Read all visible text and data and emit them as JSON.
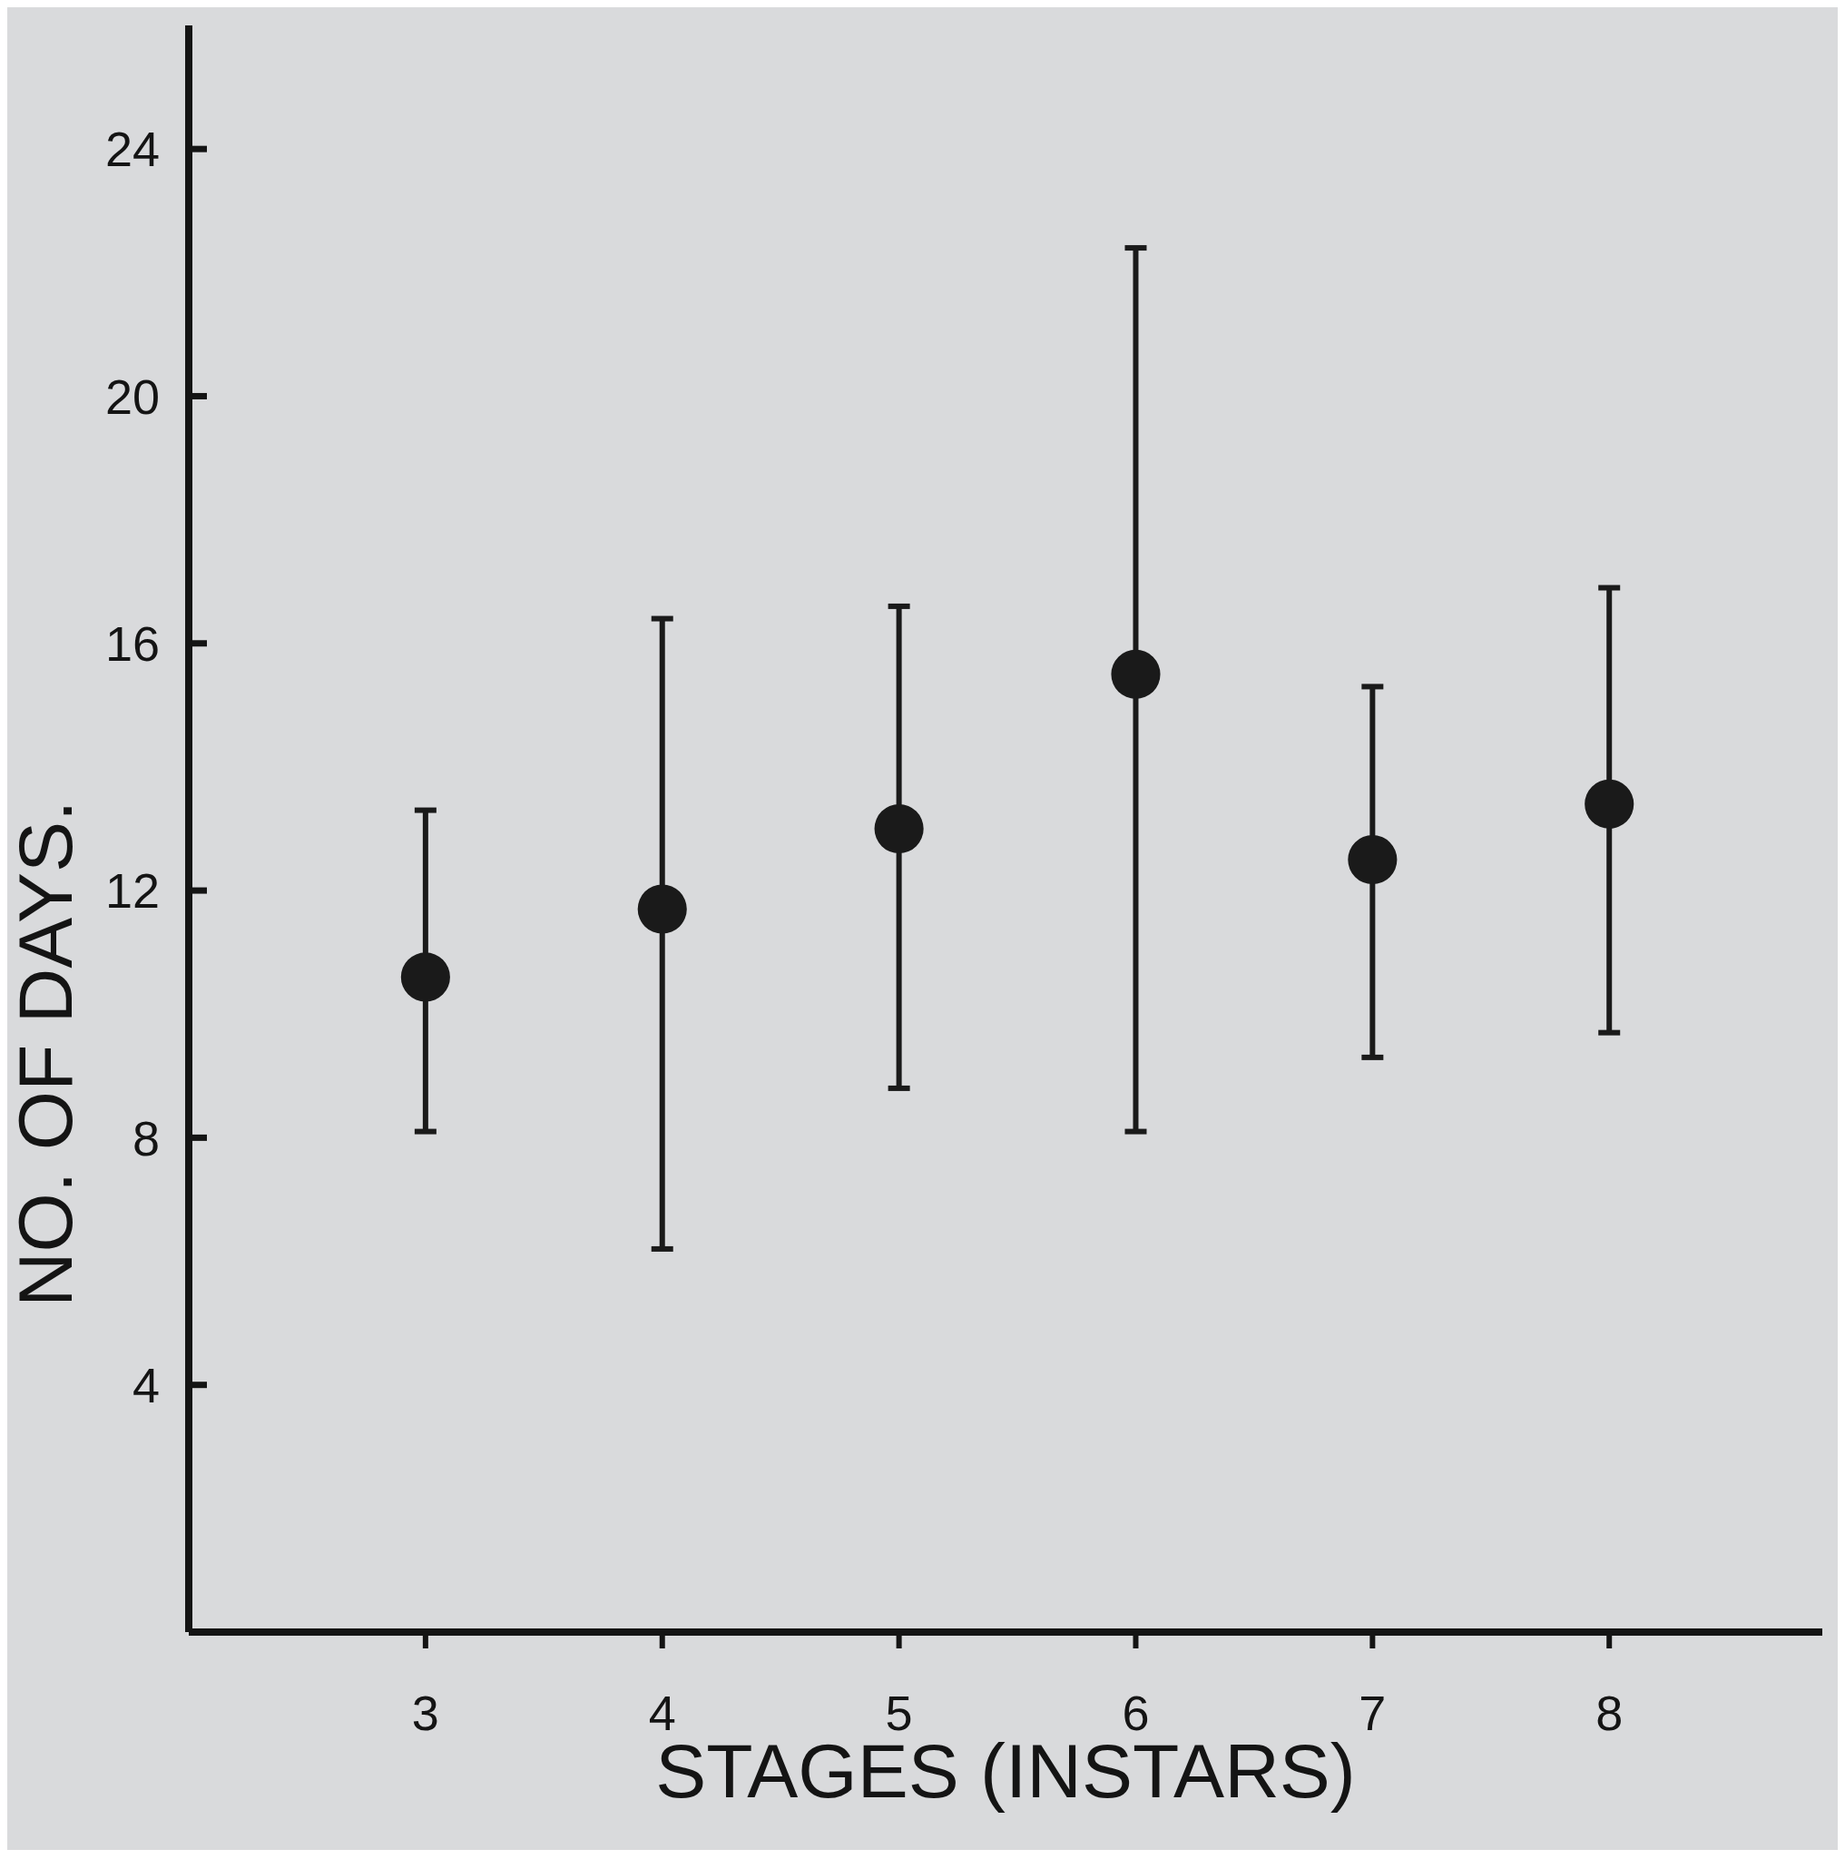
{
  "chart_data": {
    "type": "scatter",
    "xlabel": "STAGES (INSTARS)",
    "ylabel": "NO. OF DAYS.",
    "x": [
      3,
      4,
      5,
      6,
      7,
      8
    ],
    "values": [
      10.6,
      11.7,
      13.0,
      15.5,
      12.5,
      13.4
    ],
    "errors": [
      [
        8.1,
        13.3
      ],
      [
        6.2,
        16.4
      ],
      [
        8.8,
        16.6
      ],
      [
        8.1,
        22.4
      ],
      [
        9.3,
        15.3
      ],
      [
        9.7,
        16.9
      ]
    ],
    "color": "#1a1a1a",
    "xlim": [
      2,
      8.9
    ],
    "ylim": [
      0,
      26
    ],
    "xticks": [
      3,
      4,
      5,
      6,
      7,
      8
    ],
    "yticks": [
      4,
      8,
      12,
      16,
      20,
      24
    ],
    "marker": "circle"
  }
}
